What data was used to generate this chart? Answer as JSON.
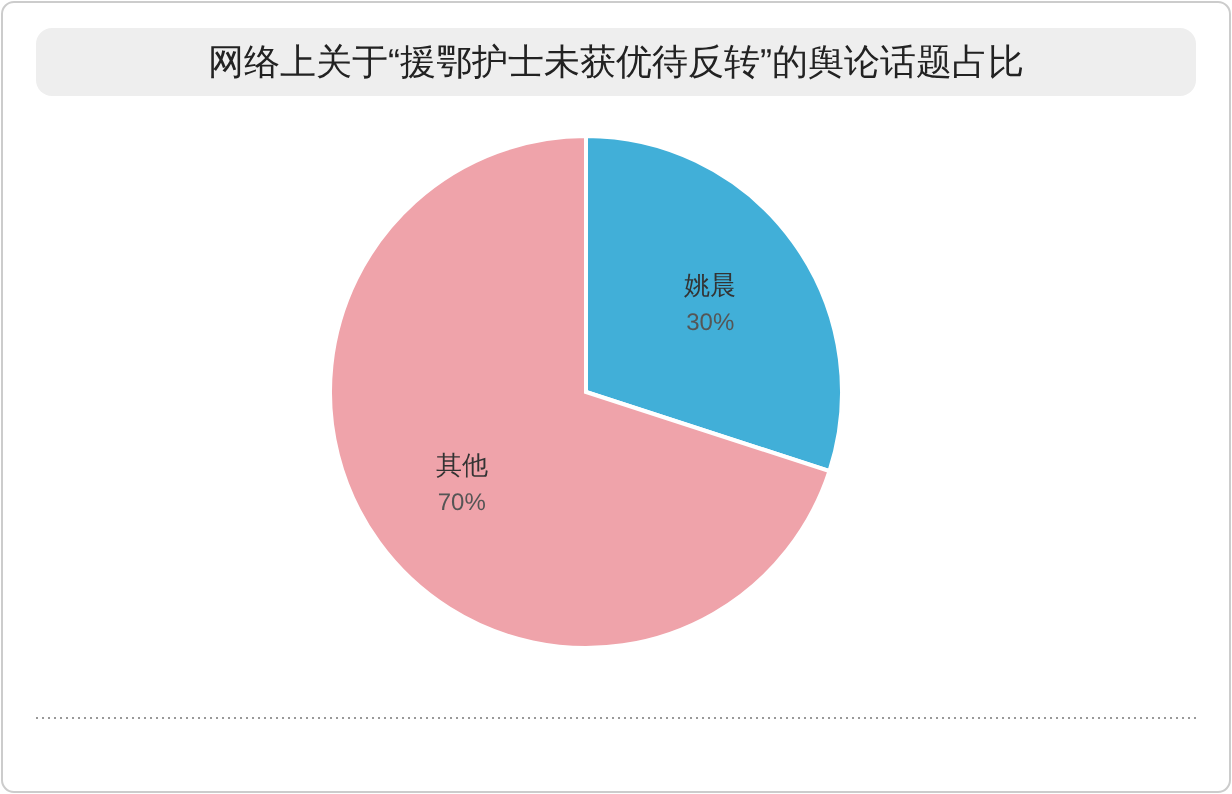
{
  "chart_data": {
    "type": "pie",
    "title": "网络上关于“援鄂护士未获优待反转”的舆论话题占比",
    "categories": [
      "姚晨",
      "其他"
    ],
    "values": [
      30,
      70
    ],
    "colors": [
      "#41afd8",
      "#efa3aa"
    ],
    "value_labels": [
      "30%",
      "70%"
    ],
    "legend": false
  }
}
